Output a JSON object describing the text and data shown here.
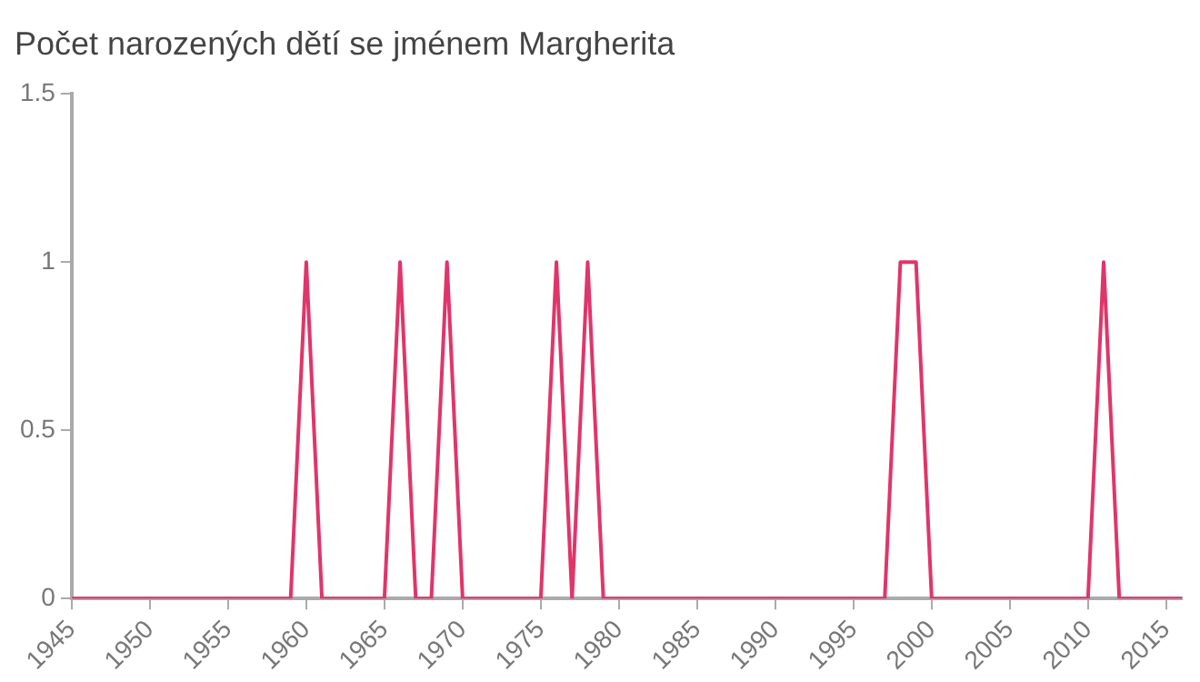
{
  "chart_data": {
    "type": "line",
    "title": "Počet narozených dětí se jménem Margherita",
    "x": [
      1945,
      1946,
      1947,
      1948,
      1949,
      1950,
      1951,
      1952,
      1953,
      1954,
      1955,
      1956,
      1957,
      1958,
      1959,
      1960,
      1961,
      1962,
      1963,
      1964,
      1965,
      1966,
      1967,
      1968,
      1969,
      1970,
      1971,
      1972,
      1973,
      1974,
      1975,
      1976,
      1977,
      1978,
      1979,
      1980,
      1981,
      1982,
      1983,
      1984,
      1985,
      1986,
      1987,
      1988,
      1989,
      1990,
      1991,
      1992,
      1993,
      1994,
      1995,
      1996,
      1997,
      1998,
      1999,
      2000,
      2001,
      2002,
      2003,
      2004,
      2005,
      2006,
      2007,
      2008,
      2009,
      2010,
      2011,
      2012,
      2013,
      2014,
      2015,
      2016
    ],
    "series": [
      {
        "color": "#e0356a",
        "values": [
          0,
          0,
          0,
          0,
          0,
          0,
          0,
          0,
          0,
          0,
          0,
          0,
          0,
          0,
          0,
          1,
          0,
          0,
          0,
          0,
          0,
          1,
          0,
          0,
          1,
          0,
          0,
          0,
          0,
          0,
          0,
          1,
          0,
          1,
          0,
          0,
          0,
          0,
          0,
          0,
          0,
          0,
          0,
          0,
          0,
          0,
          0,
          0,
          0,
          0,
          0,
          0,
          0,
          1,
          1,
          0,
          0,
          0,
          0,
          0,
          0,
          0,
          0,
          0,
          0,
          0,
          1,
          0,
          0,
          0,
          0,
          0
        ]
      }
    ],
    "xlim": [
      1945,
      2016
    ],
    "xticks": [
      1945,
      1950,
      1955,
      1960,
      1965,
      1970,
      1975,
      1980,
      1985,
      1990,
      1995,
      2000,
      2005,
      2010,
      2015
    ],
    "ylim": [
      0,
      1.5
    ],
    "yticks": [
      0,
      0.5,
      1,
      1.5
    ],
    "grid": false,
    "legend": false,
    "marker": "none",
    "line_style": "solid"
  }
}
